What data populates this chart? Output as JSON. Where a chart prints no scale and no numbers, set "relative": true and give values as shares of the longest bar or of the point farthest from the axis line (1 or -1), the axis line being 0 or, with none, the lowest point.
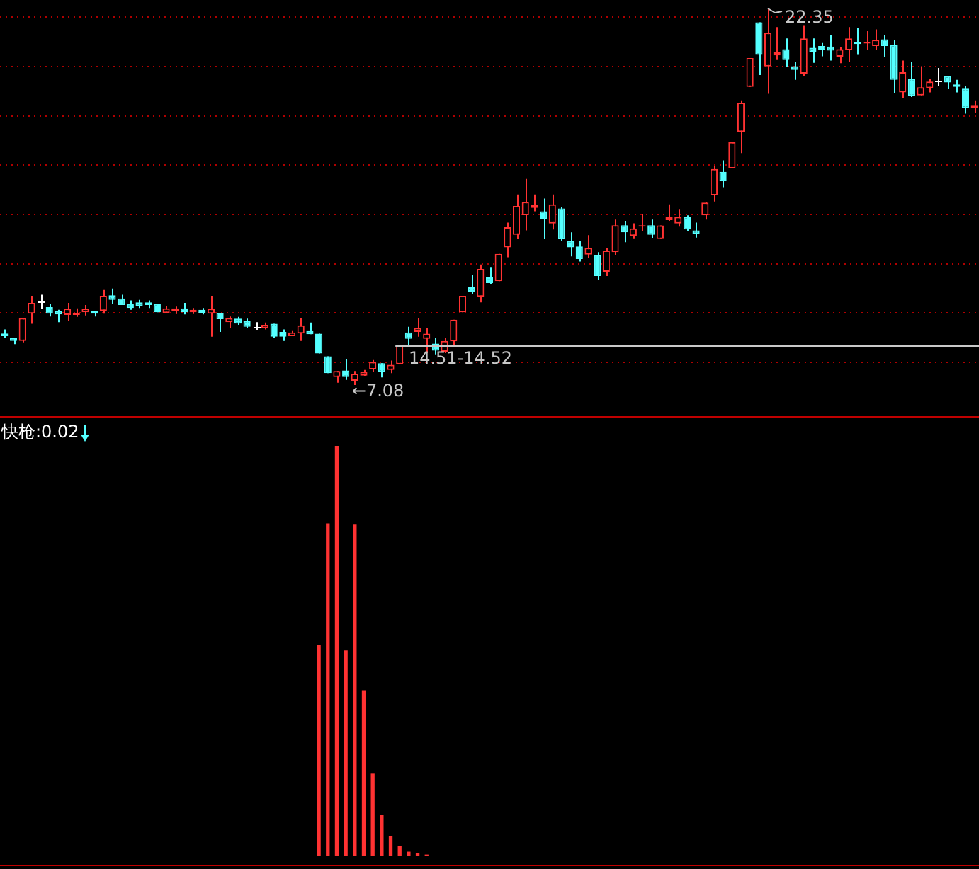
{
  "chart_data": [
    {
      "type": "candlestick",
      "categories": [
        null,
        null,
        null,
        null,
        null,
        null,
        null,
        null,
        null,
        null,
        null,
        null,
        null,
        null,
        null,
        null,
        null,
        null,
        null,
        null,
        null,
        null,
        null,
        null,
        null,
        null,
        null,
        null,
        null,
        null,
        null,
        null,
        null,
        null,
        null,
        null,
        null,
        null,
        null,
        null,
        null,
        null,
        null,
        null,
        null,
        null,
        null,
        null,
        null,
        null,
        null,
        null,
        null,
        null,
        null,
        null,
        null,
        null,
        null,
        null,
        null,
        null,
        null,
        null,
        null,
        null,
        null,
        null,
        null,
        null,
        null,
        null,
        null,
        null,
        null,
        null,
        null,
        null,
        null,
        null,
        null,
        null,
        null,
        null,
        null,
        null,
        null,
        null,
        null,
        null,
        null,
        null,
        null,
        null,
        null,
        null,
        null,
        null,
        null,
        null,
        null,
        null,
        null,
        null,
        null,
        null,
        null,
        null,
        null
      ],
      "ohlc": [
        [
          9.17,
          9.33,
          8.99,
          9.06
        ],
        [
          8.99,
          8.99,
          8.74,
          8.87
        ],
        [
          8.87,
          9.79,
          8.81,
          9.79
        ],
        [
          9.97,
          10.7,
          9.56,
          10.41
        ],
        [
          10.45,
          10.74,
          10.17,
          10.45
        ],
        [
          10.24,
          10.36,
          9.86,
          9.97
        ],
        [
          10.09,
          10.13,
          9.63,
          9.94
        ],
        [
          9.92,
          10.41,
          9.69,
          10.17
        ],
        [
          9.92,
          10.19,
          9.84,
          10.01
        ],
        [
          10.03,
          10.32,
          9.9,
          10.17
        ],
        [
          10.07,
          10.07,
          9.86,
          9.97
        ],
        [
          10.09,
          10.93,
          9.97,
          10.7
        ],
        [
          10.72,
          10.99,
          10.37,
          10.53
        ],
        [
          10.59,
          10.74,
          10.32,
          10.32
        ],
        [
          10.36,
          10.51,
          10.13,
          10.2
        ],
        [
          10.43,
          10.53,
          10.2,
          10.28
        ],
        [
          10.43,
          10.51,
          10.2,
          10.32
        ],
        [
          10.36,
          10.36,
          10.03,
          10.03
        ],
        [
          10.0,
          10.28,
          10.0,
          10.19
        ],
        [
          10.07,
          10.26,
          9.96,
          10.19
        ],
        [
          10.19,
          10.41,
          9.94,
          10.03
        ],
        [
          10.03,
          10.2,
          9.96,
          10.13
        ],
        [
          10.13,
          10.2,
          9.94,
          10.01
        ],
        [
          9.97,
          10.7,
          9.04,
          10.17
        ],
        [
          10.01,
          10.01,
          9.23,
          9.75
        ],
        [
          9.63,
          9.86,
          9.4,
          9.79
        ],
        [
          9.77,
          9.84,
          9.52,
          9.57
        ],
        [
          9.67,
          9.77,
          9.39,
          9.44
        ],
        [
          9.46,
          9.63,
          9.29,
          9.46
        ],
        [
          9.39,
          9.61,
          9.33,
          9.52
        ],
        [
          9.56,
          9.56,
          8.99,
          9.04
        ],
        [
          9.23,
          9.33,
          8.87,
          9.04
        ],
        [
          9.06,
          9.27,
          9.06,
          9.21
        ],
        [
          9.17,
          9.79,
          8.87,
          9.5
        ],
        [
          9.27,
          9.61,
          9.14,
          9.14
        ],
        [
          9.16,
          9.16,
          8.36,
          8.36
        ],
        [
          8.24,
          8.24,
          7.56,
          7.56
        ],
        [
          7.4,
          7.65,
          7.17,
          7.65
        ],
        [
          7.67,
          8.13,
          7.29,
          7.4
        ],
        [
          7.25,
          7.65,
          7.08,
          7.54
        ],
        [
          7.46,
          7.69,
          7.43,
          7.61
        ],
        [
          7.71,
          8.09,
          7.6,
          8.01
        ],
        [
          7.96,
          7.96,
          7.39,
          7.61
        ],
        [
          7.69,
          8.07,
          7.56,
          7.9
        ],
        [
          7.92,
          8.68,
          7.92,
          8.68
        ],
        [
          9.21,
          9.44,
          8.7,
          8.95
        ],
        [
          9.23,
          9.79,
          9.04,
          9.39
        ],
        [
          8.95,
          9.39,
          8.37,
          9.16
        ],
        [
          8.76,
          8.99,
          8.32,
          8.47
        ],
        [
          8.43,
          8.99,
          8.37,
          8.87
        ],
        [
          8.85,
          9.73,
          8.66,
          9.73
        ],
        [
          10.03,
          10.7,
          10.03,
          10.7
        ],
        [
          11.04,
          11.56,
          10.77,
          10.87
        ],
        [
          10.66,
          11.97,
          10.43,
          11.79
        ],
        [
          11.44,
          11.84,
          11.16,
          11.21
        ],
        [
          11.29,
          12.4,
          11.29,
          12.4
        ],
        [
          12.66,
          13.67,
          12.26,
          13.48
        ],
        [
          13.17,
          14.81,
          12.99,
          14.34
        ],
        [
          13.97,
          15.44,
          13.35,
          14.51
        ],
        [
          14.26,
          14.81,
          14.13,
          14.37
        ],
        [
          14.13,
          14.64,
          12.99,
          13.8
        ],
        [
          13.63,
          14.81,
          13.39,
          14.41
        ],
        [
          14.24,
          14.3,
          12.93,
          12.99
        ],
        [
          12.93,
          13.27,
          12.3,
          12.66
        ],
        [
          12.7,
          12.93,
          12.09,
          12.19
        ],
        [
          12.37,
          13.16,
          12.24,
          12.64
        ],
        [
          12.36,
          12.47,
          11.33,
          11.5
        ],
        [
          11.67,
          12.64,
          11.5,
          12.53
        ],
        [
          12.47,
          13.79,
          12.36,
          13.56
        ],
        [
          13.56,
          13.73,
          12.87,
          13.27
        ],
        [
          13.13,
          13.64,
          13.0,
          13.43
        ],
        [
          13.5,
          14.01,
          13.33,
          13.56
        ],
        [
          13.56,
          13.79,
          13.04,
          13.17
        ],
        [
          13.0,
          13.55,
          13.0,
          13.55
        ],
        [
          13.77,
          14.41,
          13.73,
          13.88
        ],
        [
          13.63,
          14.19,
          13.5,
          13.9
        ],
        [
          13.9,
          13.96,
          13.33,
          13.39
        ],
        [
          13.35,
          13.67,
          13.06,
          13.21
        ],
        [
          13.96,
          14.51,
          13.79,
          14.48
        ],
        [
          14.77,
          15.97,
          14.52,
          15.84
        ],
        [
          15.73,
          16.19,
          15.1,
          15.35
        ],
        [
          15.86,
          16.93,
          15.86,
          16.93
        ],
        [
          17.35,
          18.6,
          16.49,
          18.53
        ],
        [
          19.17,
          20.34,
          19.17,
          20.34
        ],
        [
          21.79,
          21.79,
          19.65,
          20.47
        ],
        [
          20.0,
          22.35,
          18.89,
          21.37
        ],
        [
          20.45,
          21.6,
          20.26,
          20.57
        ],
        [
          20.7,
          21.14,
          19.97,
          20.26
        ],
        [
          20.01,
          20.19,
          19.46,
          19.86
        ],
        [
          19.71,
          21.65,
          19.61,
          21.14
        ],
        [
          20.76,
          21.14,
          20.15,
          20.57
        ],
        [
          20.83,
          20.95,
          20.41,
          20.66
        ],
        [
          20.81,
          21.27,
          20.24,
          20.64
        ],
        [
          20.4,
          20.8,
          20.13,
          20.7
        ],
        [
          20.66,
          21.6,
          20.2,
          21.14
        ],
        [
          20.99,
          21.56,
          20.47,
          20.91
        ],
        [
          20.93,
          21.43,
          20.66,
          20.99
        ],
        [
          20.83,
          21.5,
          20.66,
          21.08
        ],
        [
          21.1,
          21.27,
          20.37,
          20.83
        ],
        [
          20.87,
          21.08,
          18.93,
          19.46
        ],
        [
          18.95,
          20.24,
          18.72,
          19.77
        ],
        [
          19.5,
          20.19,
          18.76,
          18.8
        ],
        [
          18.83,
          20.01,
          18.83,
          19.16
        ],
        [
          19.12,
          19.48,
          18.95,
          19.39
        ],
        [
          19.44,
          19.94,
          19.21,
          19.44
        ],
        [
          19.61,
          19.61,
          19.08,
          19.35
        ],
        [
          19.27,
          19.46,
          18.95,
          19.17
        ],
        [
          19.1,
          19.21,
          18.09,
          18.32
        ],
        [
          18.32,
          18.6,
          18.13,
          18.41
        ]
      ],
      "colors": [
        "#54ffff",
        "#54ffff",
        "#ff3232",
        "#ff3232",
        "#ffffff",
        "#54ffff",
        "#54ffff",
        "#ff3232",
        "#ff3232",
        "#ff3232",
        "#54ffff",
        "#ff3232",
        "#54ffff",
        "#54ffff",
        "#54ffff",
        "#54ffff",
        "#54ffff",
        "#54ffff",
        "#ff3232",
        "#ff3232",
        "#54ffff",
        "#ff3232",
        "#54ffff",
        "#ff3232",
        "#54ffff",
        "#ff3232",
        "#54ffff",
        "#54ffff",
        "#ffffff",
        "#ff3232",
        "#54ffff",
        "#54ffff",
        "#ff3232",
        "#ff3232",
        "#54ffff",
        "#54ffff",
        "#54ffff",
        "#ff3232",
        "#54ffff",
        "#ff3232",
        "#ff3232",
        "#ff3232",
        "#54ffff",
        "#ff3232",
        "#ff3232",
        "#54ffff",
        "#ff3232",
        "#ff3232",
        "#54ffff",
        "#ff3232",
        "#ff3232",
        "#ff3232",
        "#54ffff",
        "#ff3232",
        "#54ffff",
        "#ff3232",
        "#ff3232",
        "#ff3232",
        "#ff3232",
        "#ff3232",
        "#54ffff",
        "#ff3232",
        "#54ffff",
        "#54ffff",
        "#54ffff",
        "#ff3232",
        "#54ffff",
        "#ff3232",
        "#ff3232",
        "#54ffff",
        "#ff3232",
        "#ff3232",
        "#54ffff",
        "#ff3232",
        "#ff3232",
        "#ff3232",
        "#54ffff",
        "#54ffff",
        "#ff3232",
        "#ff3232",
        "#54ffff",
        "#ff3232",
        "#ff3232",
        "#ff3232",
        "#54ffff",
        "#ff3232",
        "#ff3232",
        "#54ffff",
        "#54ffff",
        "#ff3232",
        "#54ffff",
        "#54ffff",
        "#54ffff",
        "#ff3232",
        "#ff3232",
        "#54ffff",
        "#ff3232",
        "#ff3232",
        "#54ffff",
        "#54ffff",
        "#ff3232",
        "#54ffff",
        "#ff3232",
        "#ff3232",
        "#ffffff",
        "#54ffff",
        "#54ffff",
        "#54ffff",
        "#ff3232"
      ],
      "yticks": [
        {
          "value": 8,
          "label": null
        },
        {
          "value": 10,
          "label": null
        },
        {
          "value": 12,
          "label": null
        },
        {
          "value": 14,
          "label": null
        },
        {
          "value": 16,
          "label": null
        },
        {
          "value": 18,
          "label": null
        },
        {
          "value": 20,
          "label": null
        },
        {
          "value": 22,
          "label": null
        }
      ],
      "grid": "y",
      "tick_labels": false,
      "legend": false,
      "annotations": [
        "22.35",
        "←7.08",
        "14.51-14.52"
      ]
    },
    {
      "type": "bar",
      "title": "快枪:0.02",
      "categories": [
        null,
        null,
        null,
        null,
        null,
        null,
        null,
        null,
        null,
        null,
        null,
        null,
        null,
        null,
        null,
        null,
        null,
        null,
        null,
        null,
        null,
        null,
        null,
        null,
        null,
        null,
        null,
        null,
        null,
        null,
        null,
        null,
        null,
        null,
        null,
        null,
        null,
        null,
        null,
        null,
        null,
        null,
        null,
        null,
        null,
        null,
        null,
        null,
        null,
        null,
        null,
        null,
        null,
        null,
        null,
        null,
        null,
        null,
        null,
        null,
        null,
        null,
        null,
        null,
        null,
        null,
        null,
        null,
        null,
        null,
        null,
        null,
        null,
        null,
        null,
        null,
        null,
        null,
        null,
        null,
        null,
        null,
        null,
        null,
        null,
        null,
        null,
        null,
        null,
        null,
        null,
        null,
        null,
        null,
        null,
        null,
        null,
        null,
        null,
        null,
        null,
        null,
        null,
        null,
        null,
        null,
        null,
        null,
        null
      ],
      "values": [
        null,
        null,
        null,
        null,
        null,
        null,
        null,
        null,
        null,
        null,
        null,
        null,
        null,
        null,
        null,
        null,
        null,
        null,
        null,
        null,
        null,
        null,
        null,
        null,
        null,
        null,
        null,
        null,
        null,
        null,
        null,
        null,
        null,
        null,
        null,
        0.514,
        0.81,
        1,
        0.5,
        0.807,
        0.403,
        0.2,
        0.1,
        0.048,
        0.024,
        0.01,
        0.007,
        0.003,
        null,
        null,
        null,
        null,
        null,
        null,
        null,
        null,
        null,
        null,
        null,
        null,
        null,
        null,
        null,
        null,
        null,
        null,
        null,
        null,
        null,
        null,
        null,
        null,
        null,
        null,
        null,
        null,
        null,
        null,
        null,
        null,
        null,
        null,
        null,
        null,
        null,
        null,
        null,
        null,
        null,
        null,
        null,
        null,
        null,
        null,
        null,
        null,
        null,
        null,
        null,
        null,
        null,
        null,
        null,
        null,
        null,
        null,
        null,
        null,
        null
      ],
      "color": "#ff3232",
      "relative": true,
      "legend": false
    }
  ]
}
